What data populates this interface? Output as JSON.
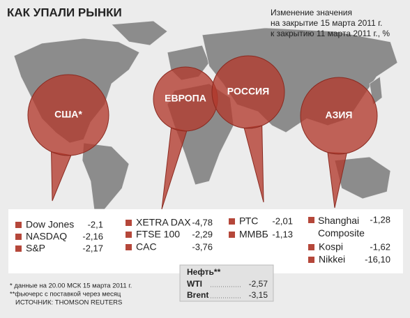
{
  "title": "КАК УПАЛИ РЫНКИ",
  "subtitle": [
    "Изменение значения",
    "на закрытие 15 марта 2011 г.",
    "к закрытию 11 марта 2011 г., %"
  ],
  "regions": [
    {
      "label": "США*"
    },
    {
      "label": "ЕВРОПА"
    },
    {
      "label": "РОССИЯ"
    },
    {
      "label": "АЗИЯ"
    }
  ],
  "markets": [
    {
      "items": [
        {
          "name": "Dow Jones",
          "value": "-2,1"
        },
        {
          "name": "NASDAQ",
          "value": "-2,16"
        },
        {
          "name": "S&P",
          "value": "-2,17"
        }
      ]
    },
    {
      "items": [
        {
          "name": "XETRA DAX",
          "value": "-4,78"
        },
        {
          "name": "FTSE 100",
          "value": "-2,29"
        },
        {
          "name": "CAC",
          "value": "-3,76"
        }
      ]
    },
    {
      "items": [
        {
          "name": "РТС",
          "value": "-2,01"
        },
        {
          "name": "ММВБ",
          "value": "-1,13"
        }
      ]
    },
    {
      "items": [
        {
          "name": "Shanghai Composite",
          "value": "-1,28"
        },
        {
          "name": "Kospi",
          "value": "-1,62"
        },
        {
          "name": "Nikkei",
          "value": "-16,10"
        }
      ]
    }
  ],
  "oil": {
    "title": "Нефть**",
    "items": [
      {
        "name": "WTI",
        "value": "-2,57"
      },
      {
        "name": "Brent",
        "value": "-3,15"
      }
    ]
  },
  "footnotes": [
    "* данные на 20.00 МСК 15 марта 2011 г.",
    "**фьючерс с поставкой через месяц",
    "ИСТОЧНИК: THOMSON REUTERS"
  ]
}
